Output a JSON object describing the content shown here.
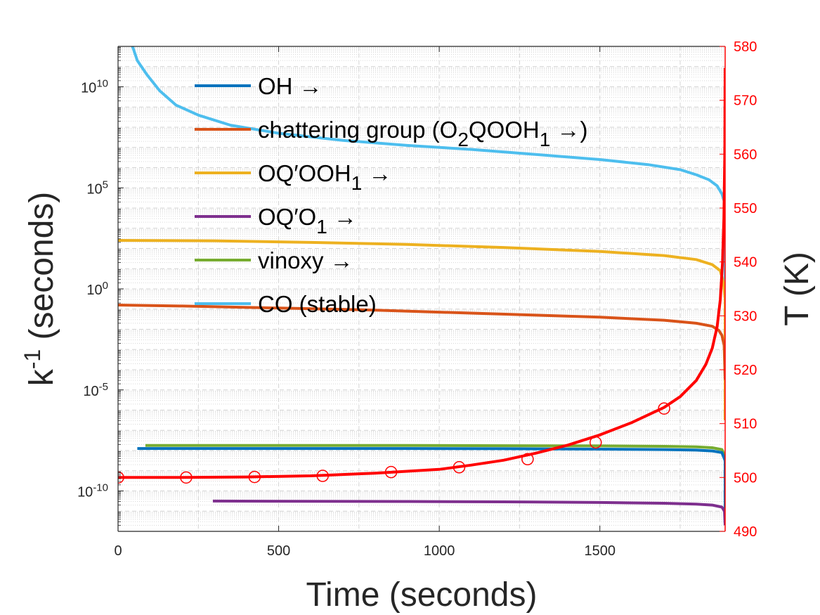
{
  "chart_data": {
    "type": "line",
    "xlabel": "Time (seconds)",
    "ylabel_left": {
      "base": "k",
      "sup": "-1",
      "rest": " (seconds)"
    },
    "ylabel_right": "T (K)",
    "xlim": [
      0,
      1890
    ],
    "ylim_left": [
      1e-12,
      1000000000000.0
    ],
    "y_left_scale": "log",
    "ylim_right": [
      490,
      580
    ],
    "grid": true,
    "legend_position": "top-left",
    "x_ticks": [
      0,
      500,
      1000,
      1500
    ],
    "x_tick_labels": [
      "0",
      "500",
      "1000",
      "1500"
    ],
    "y_left_ticks": [
      {
        "exp": -10,
        "base": "10",
        "sup": "-10"
      },
      {
        "exp": -5,
        "base": "10",
        "sup": "-5"
      },
      {
        "exp": 0,
        "base": "10",
        "sup": "0"
      },
      {
        "exp": 5,
        "base": "10",
        "sup": "5"
      },
      {
        "exp": 10,
        "base": "10",
        "sup": "10"
      }
    ],
    "y_right_ticks": [
      490,
      500,
      510,
      520,
      530,
      540,
      550,
      560,
      570,
      580
    ],
    "y_right_tick_labels": [
      "490",
      "500",
      "510",
      "520",
      "530",
      "540",
      "550",
      "560",
      "570",
      "580"
    ],
    "series": [
      {
        "key": "oh",
        "legend": [
          {
            "t": "OH →"
          }
        ],
        "color": "#0072BD",
        "axis": "left",
        "x": [
          60,
          300,
          600,
          900,
          1200,
          1500,
          1700,
          1800,
          1850,
          1880,
          1890,
          1890
        ],
        "y_log10": [
          -7.9,
          -7.9,
          -7.9,
          -7.9,
          -7.91,
          -7.93,
          -7.95,
          -7.98,
          -8.02,
          -8.1,
          -8.5,
          -11.5
        ]
      },
      {
        "key": "chattering",
        "legend": [
          {
            "t": "chattering group (O"
          },
          {
            "t": "2",
            "sub": true
          },
          {
            "t": "QOOH"
          },
          {
            "t": "1",
            "sub": true
          },
          {
            "t": " →)"
          }
        ],
        "color": "#D95319",
        "axis": "left",
        "x": [
          0,
          200,
          500,
          800,
          1000,
          1300,
          1500,
          1700,
          1800,
          1850,
          1870,
          1880,
          1887,
          1890
        ],
        "y_log10": [
          -0.8,
          -0.85,
          -0.95,
          -1.05,
          -1.15,
          -1.3,
          -1.4,
          -1.55,
          -1.7,
          -1.85,
          -2.05,
          -2.3,
          -2.8,
          -4.5
        ]
      },
      {
        "key": "oqoooh",
        "legend": [
          {
            "t": "OQ′OOH"
          },
          {
            "t": "1",
            "sub": true
          },
          {
            "t": " →"
          }
        ],
        "color": "#EDB120",
        "axis": "left",
        "x": [
          0,
          300,
          600,
          900,
          1200,
          1500,
          1700,
          1800,
          1850,
          1875,
          1885,
          1890,
          1890
        ],
        "y_log10": [
          2.4,
          2.38,
          2.3,
          2.2,
          2.05,
          1.85,
          1.65,
          1.45,
          1.2,
          0.9,
          0.3,
          -0.5,
          -6.5
        ]
      },
      {
        "key": "oqo",
        "legend": [
          {
            "t": "OQ′O"
          },
          {
            "t": "1",
            "sub": true
          },
          {
            "t": " →"
          }
        ],
        "color": "#7E2F8E",
        "axis": "left",
        "x": [
          295,
          600,
          900,
          1200,
          1500,
          1700,
          1800,
          1850,
          1880,
          1888,
          1890
        ],
        "y_log10": [
          -10.5,
          -10.51,
          -10.52,
          -10.54,
          -10.57,
          -10.61,
          -10.65,
          -10.7,
          -10.8,
          -11.0,
          -11.7
        ]
      },
      {
        "key": "vinoxy",
        "legend": [
          {
            "t": "vinoxy →"
          }
        ],
        "color": "#77AC30",
        "axis": "left",
        "x": [
          85,
          300,
          600,
          900,
          1200,
          1500,
          1700,
          1800,
          1850,
          1880,
          1890,
          1890
        ],
        "y_log10": [
          -7.75,
          -7.75,
          -7.75,
          -7.75,
          -7.76,
          -7.77,
          -7.79,
          -7.82,
          -7.86,
          -7.95,
          -8.3,
          -9.8
        ]
      },
      {
        "key": "co",
        "legend": [
          {
            "t": "CO (stable)"
          }
        ],
        "color": "#4DBEEE",
        "axis": "left",
        "x": [
          45,
          60,
          90,
          130,
          180,
          250,
          350,
          500,
          700,
          900,
          1100,
          1300,
          1500,
          1650,
          1750,
          1800,
          1840,
          1865,
          1880,
          1888,
          1890,
          1890
        ],
        "y_log10": [
          12.0,
          11.3,
          10.6,
          9.8,
          9.1,
          8.6,
          8.1,
          7.7,
          7.35,
          7.1,
          6.9,
          6.65,
          6.4,
          6.15,
          5.9,
          5.65,
          5.4,
          5.1,
          4.7,
          4.3,
          3.6,
          -6.0
        ]
      },
      {
        "key": "temperature",
        "color": "#FF0000",
        "axis": "right",
        "x": [
          0,
          200,
          400,
          600,
          800,
          1000,
          1100,
          1200,
          1300,
          1400,
          1500,
          1600,
          1700,
          1750,
          1800,
          1830,
          1850,
          1865,
          1875,
          1882,
          1886,
          1889,
          1890
        ],
        "y": [
          500,
          500,
          500.1,
          500.3,
          500.8,
          501.5,
          502.3,
          503.2,
          504.5,
          506.0,
          507.9,
          510.2,
          513.0,
          515.0,
          518.0,
          521.0,
          524.0,
          528.0,
          533.0,
          540.0,
          548.0,
          560.0,
          576.0
        ]
      }
    ],
    "markers": {
      "series": "temperature",
      "shape": "open-circle",
      "x": [
        0,
        212,
        425,
        637,
        850,
        1062,
        1275,
        1487,
        1700
      ],
      "y": [
        500,
        500,
        500.1,
        500.3,
        501,
        501.9,
        503.4,
        506.5,
        512.8
      ]
    }
  }
}
